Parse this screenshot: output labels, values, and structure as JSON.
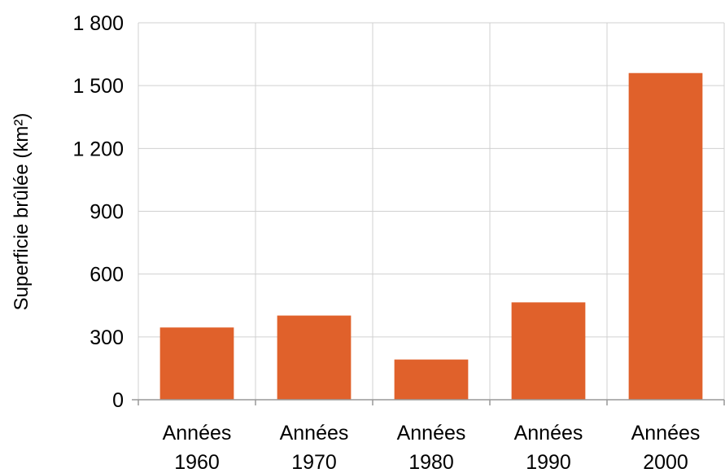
{
  "chart_data": {
    "type": "bar",
    "title": "",
    "xlabel": "",
    "ylabel": "Superficie brûlée (km²)",
    "categories": [
      [
        "Années",
        "1960"
      ],
      [
        "Années",
        "1970"
      ],
      [
        "Années",
        "1980"
      ],
      [
        "Années",
        "1990"
      ],
      [
        "Années",
        "2000"
      ]
    ],
    "values": [
      345,
      402,
      192,
      465,
      1560
    ],
    "ylim": [
      0,
      1800
    ],
    "yticks": [
      0,
      300,
      600,
      900,
      1200,
      1500,
      1800
    ],
    "ytick_labels": [
      "0",
      "300",
      "600",
      "900",
      "1 200",
      "1 500",
      "1 800"
    ],
    "grid": {
      "horizontal": true,
      "vertical": true
    },
    "legend": "none",
    "colors": {
      "bar": "#E0612B",
      "grid": "#D0D0D0",
      "axis": "#999999"
    }
  }
}
